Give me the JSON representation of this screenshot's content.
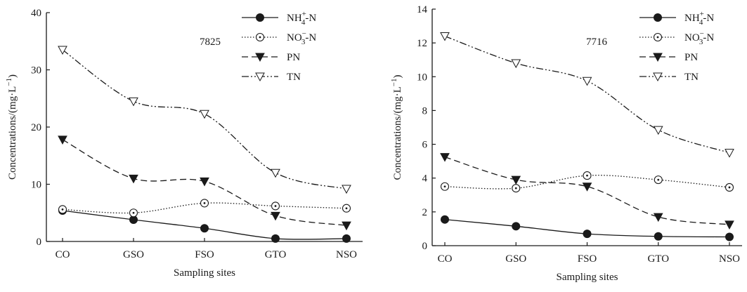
{
  "chart_data": [
    {
      "type": "line",
      "panel_label": "7825",
      "xlabel": "Sampling sites",
      "ylabel": "Concentrations/(mg·L⁻¹)",
      "categories": [
        "CO",
        "GSO",
        "FSO",
        "GTO",
        "NSO"
      ],
      "ylim": [
        0,
        40
      ],
      "yticks": [
        "0",
        "10",
        "20",
        "30",
        "40"
      ],
      "grid": false,
      "legend_position": "top-right",
      "series": [
        {
          "name": "NH₄⁺-N",
          "marker": "filled-circle",
          "line": "solid",
          "values": [
            5.4,
            3.8,
            2.3,
            0.5,
            0.5
          ]
        },
        {
          "name": "NO₃⁻-N",
          "marker": "dotted-circle",
          "line": "dotted",
          "values": [
            5.6,
            5.0,
            6.7,
            6.2,
            5.8
          ]
        },
        {
          "name": "PN",
          "marker": "filled-triangle-down",
          "line": "dashed",
          "values": [
            17.8,
            11.0,
            10.5,
            4.5,
            2.8
          ]
        },
        {
          "name": "TN",
          "marker": "open-triangle-down",
          "line": "dash-dot-dot",
          "values": [
            33.5,
            24.5,
            22.3,
            12.0,
            9.2
          ]
        }
      ]
    },
    {
      "type": "line",
      "panel_label": "7716",
      "xlabel": "Sampling sites",
      "ylabel": "Concentrations/(mg·L⁻¹)",
      "categories": [
        "CO",
        "GSO",
        "FSO",
        "GTO",
        "NSO"
      ],
      "ylim": [
        0,
        14
      ],
      "yticks": [
        "0",
        "2",
        "4",
        "6",
        "8",
        "10",
        "12",
        "14"
      ],
      "grid": false,
      "legend_position": "top-right",
      "series": [
        {
          "name": "NH₄⁺-N",
          "marker": "filled-circle",
          "line": "solid",
          "values": [
            1.55,
            1.15,
            0.7,
            0.55,
            0.52
          ]
        },
        {
          "name": "NO₃⁻-N",
          "marker": "dotted-circle",
          "line": "dotted",
          "values": [
            3.5,
            3.4,
            4.15,
            3.9,
            3.45
          ]
        },
        {
          "name": "PN",
          "marker": "filled-triangle-down",
          "line": "dashed",
          "values": [
            5.25,
            3.9,
            3.5,
            1.7,
            1.25
          ]
        },
        {
          "name": "TN",
          "marker": "open-triangle-down",
          "line": "dash-dot-dot",
          "values": [
            12.4,
            10.8,
            9.75,
            6.85,
            5.5
          ]
        }
      ]
    }
  ]
}
